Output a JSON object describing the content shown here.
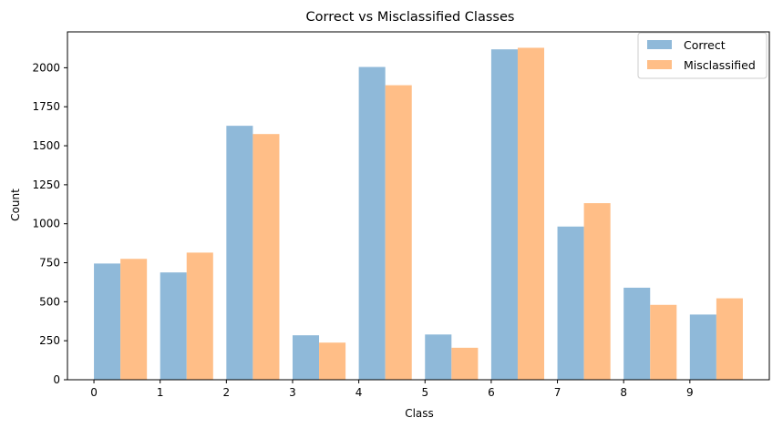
{
  "chart_data": {
    "type": "bar",
    "title": "Correct vs Misclassified Classes",
    "xlabel": "Class",
    "ylabel": "Count",
    "x_ticks": [
      0,
      1,
      2,
      3,
      4,
      5,
      6,
      7,
      8,
      9
    ],
    "x_tick_labels": [
      "0",
      "1",
      "2",
      "3",
      "4",
      "5",
      "6",
      "7",
      "8",
      "9"
    ],
    "y_ticks": [
      0,
      250,
      500,
      750,
      1000,
      1250,
      1500,
      1750,
      2000
    ],
    "y_tick_labels": [
      "0",
      "250",
      "500",
      "750",
      "1000",
      "1250",
      "1500",
      "1750",
      "2000"
    ],
    "xlim": [
      -0.4,
      10.2
    ],
    "ylim": [
      0,
      2230
    ],
    "bar_width": 0.4,
    "legend_position": "top-right",
    "grid": false,
    "series": [
      {
        "name": "Correct",
        "color": "#8fb9d9",
        "x": [
          0.2,
          1.2,
          2.2,
          3.2,
          4.2,
          5.2,
          6.2,
          7.2,
          8.2,
          9.2
        ],
        "values": [
          745,
          688,
          1628,
          285,
          2005,
          290,
          2118,
          982,
          590,
          418
        ]
      },
      {
        "name": "Misclassified",
        "color": "#ffbe87",
        "x": [
          0.6,
          1.6,
          2.6,
          3.6,
          4.6,
          5.6,
          6.6,
          7.6,
          8.6,
          9.6
        ],
        "values": [
          775,
          815,
          1575,
          238,
          1888,
          205,
          2128,
          1132,
          480,
          522
        ]
      }
    ]
  }
}
